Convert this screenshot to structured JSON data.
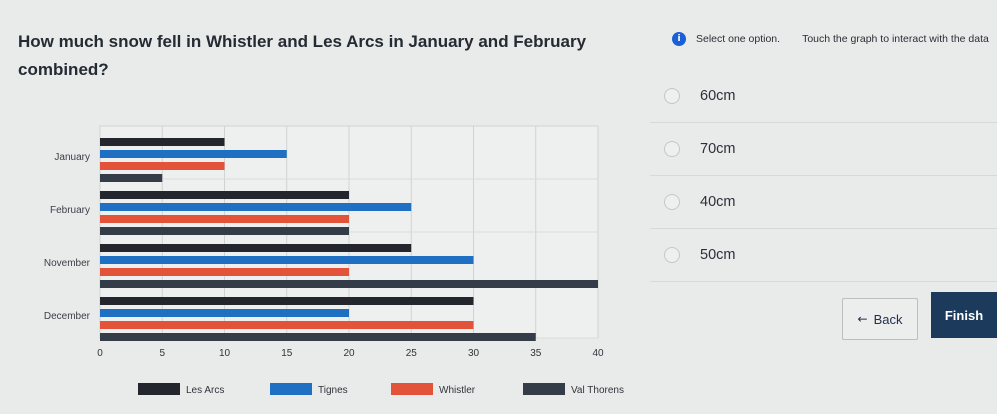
{
  "question": {
    "text": "How much snow fell in Whistler and Les Arcs in January and February combined?"
  },
  "topbar": {
    "info_icon": "info-icon",
    "instruction": "Select one option.",
    "touch_hint": "Touch the graph to interact with the data"
  },
  "options": [
    {
      "label": "60cm"
    },
    {
      "label": "70cm"
    },
    {
      "label": "40cm"
    },
    {
      "label": "50cm"
    }
  ],
  "buttons": {
    "back_label": "Back",
    "back_icon": "arrow-left-icon",
    "finish_label": "Finish"
  },
  "colors": {
    "les_arcs": "#23262d",
    "tignes": "#1f6fc2",
    "whistler": "#e2533a",
    "val_thorens": "#343c48"
  },
  "chart_data": {
    "type": "bar",
    "orientation": "horizontal",
    "categories": [
      "January",
      "February",
      "November",
      "December"
    ],
    "series": [
      {
        "name": "Les Arcs",
        "values": [
          10,
          20,
          25,
          30
        ]
      },
      {
        "name": "Tignes",
        "values": [
          15,
          25,
          30,
          20
        ]
      },
      {
        "name": "Whistler",
        "values": [
          10,
          20,
          20,
          30
        ]
      },
      {
        "name": "Val Thorens",
        "values": [
          5,
          20,
          40,
          35
        ]
      }
    ],
    "xlim": [
      0,
      40
    ],
    "xticks": [
      "0",
      "5",
      "10",
      "15",
      "20",
      "25",
      "30",
      "35",
      "40"
    ],
    "grid": true,
    "legend_position": "bottom"
  }
}
